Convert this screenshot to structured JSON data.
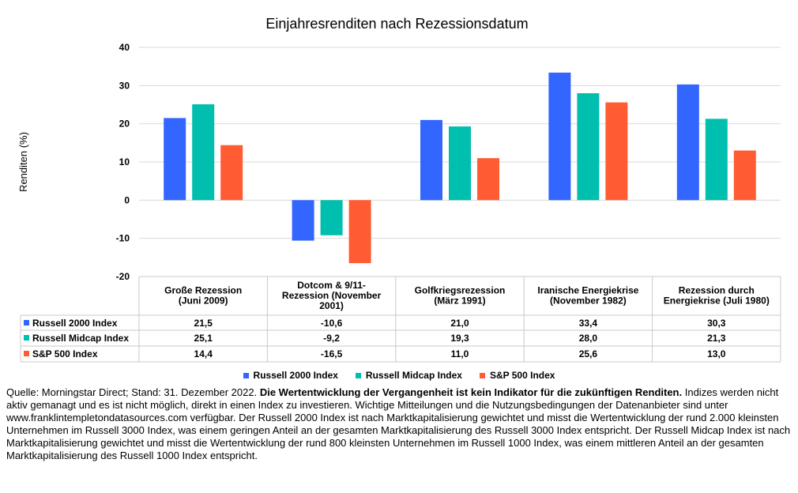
{
  "chart_data": {
    "type": "bar",
    "title": "Einjahresrenditen nach Rezessionsdatum",
    "ylabel": "Renditen (%)",
    "ylim": [
      -20,
      40
    ],
    "yticks": [
      -20,
      -10,
      0,
      10,
      20,
      30,
      40
    ],
    "grid": true,
    "legend_position": "bottom",
    "categories": [
      [
        "Große Rezession",
        "(Juni 2009)"
      ],
      [
        "Dotcom & 9/11-",
        "Rezession (November",
        "2001)"
      ],
      [
        "Golfkriegsrezession",
        "(März 1991)"
      ],
      [
        "Iranische Energiekrise",
        "(November 1982)"
      ],
      [
        "Rezession durch",
        "Energiekrise (Juli 1980)"
      ]
    ],
    "series": [
      {
        "name": "Russell 2000 Index",
        "color": "#3366ff",
        "values": [
          21.5,
          -10.6,
          21.0,
          33.4,
          30.3
        ],
        "labels": [
          "21,5",
          "-10,6",
          "21,0",
          "33,4",
          "30,3"
        ]
      },
      {
        "name": "Russell Midcap Index",
        "color": "#00bfae",
        "values": [
          25.1,
          -9.2,
          19.3,
          28.0,
          21.3
        ],
        "labels": [
          "25,1",
          "-9,2",
          "19,3",
          "28,0",
          "21,3"
        ]
      },
      {
        "name": "S&P 500 Index",
        "color": "#ff5c33",
        "values": [
          14.4,
          -16.5,
          11.0,
          25.6,
          13.0
        ],
        "labels": [
          "14,4",
          "-16,5",
          "11,0",
          "25,6",
          "13,0"
        ]
      }
    ]
  },
  "footnote": {
    "source": "Quelle: Morningstar Direct; Stand: 31. Dezember 2022. ",
    "disclaimer_bold": "Die Wertentwicklung der Vergangenheit ist kein Indikator für die zukünftigen Renditen.",
    "body": "Indizes werden nicht aktiv gemanagt und es ist nicht möglich, direkt in einen Index zu investieren. Wichtige Mitteilungen und die Nutzungsbedingungen der Datenanbieter sind unter www.franklintempletondatasources.com verfügbar. Der Russell 2000 Index ist nach Marktkapitalisierung gewichtet und misst die Wertentwicklung der rund 2.000 kleinsten Unternehmen im Russell 3000 Index, was einem geringen Anteil an der gesamten Marktkapitalisierung des Russell 3000 Index entspricht. Der Russell Midcap Index ist nach Marktkapitalisierung gewichtet und misst die Wertentwicklung der rund 800 kleinsten Unternehmen im Russell 1000 Index, was einem mittleren Anteil an der gesamten Marktkapitalisierung des Russell 1000 Index entspricht."
  }
}
